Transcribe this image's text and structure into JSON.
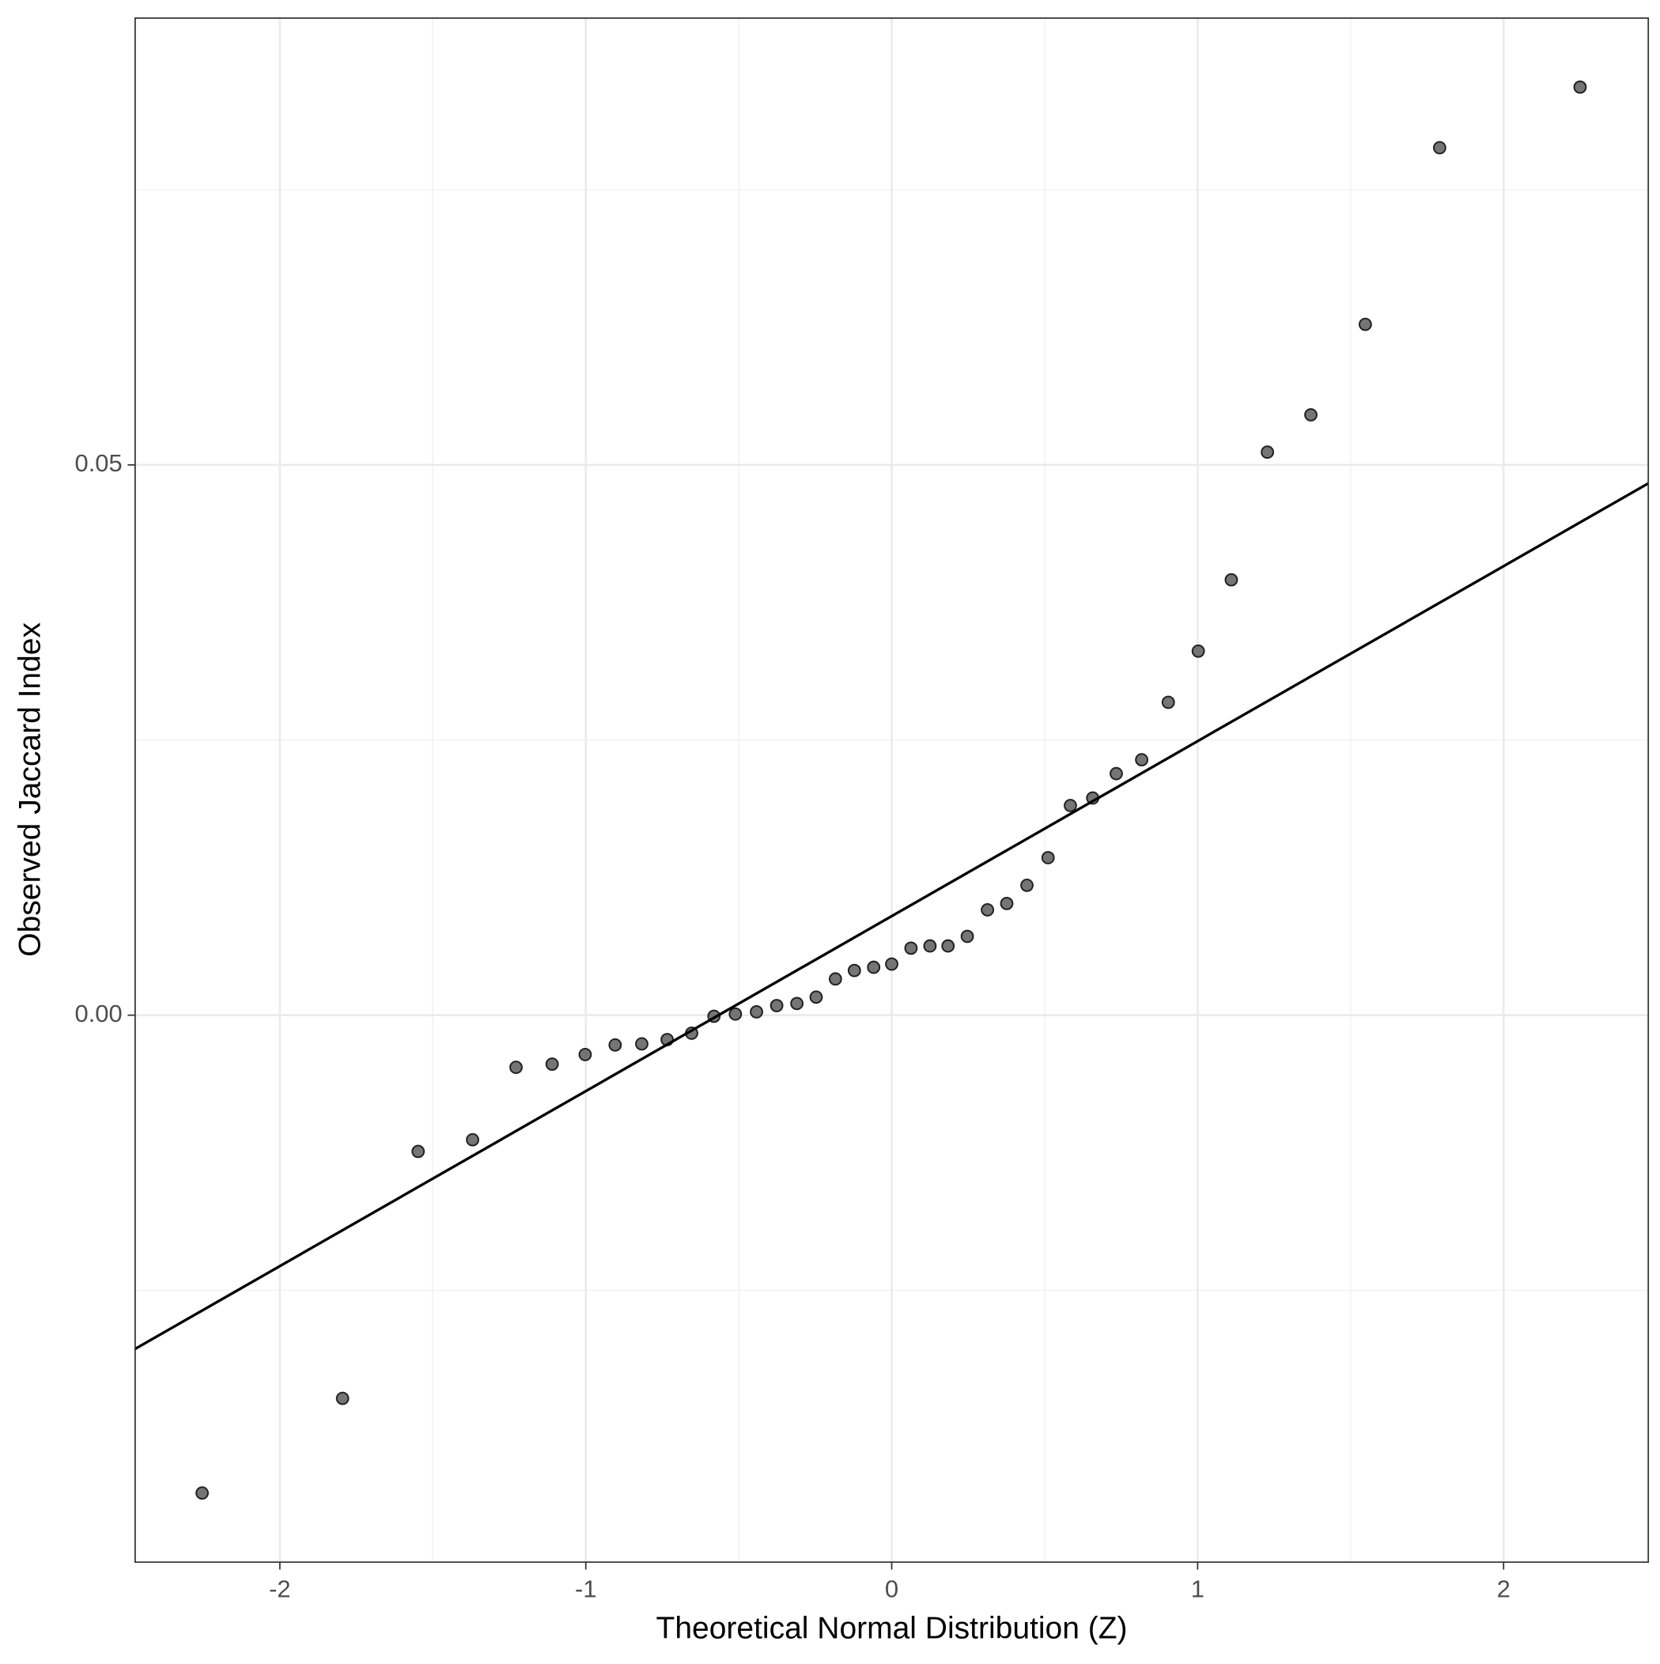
{
  "chart_data": {
    "type": "scatter",
    "xlabel": "Theoretical Normal Distribution (Z)",
    "ylabel": "Observed Jaccard Index",
    "x": [
      -2.254,
      -1.795,
      -1.548,
      -1.37,
      -1.228,
      -1.11,
      -1.002,
      -0.904,
      -0.817,
      -0.734,
      -0.654,
      -0.581,
      -0.511,
      -0.442,
      -0.376,
      -0.31,
      -0.247,
      -0.184,
      -0.122,
      -0.059,
      0,
      0.063,
      0.125,
      0.184,
      0.247,
      0.313,
      0.376,
      0.442,
      0.511,
      0.584,
      0.657,
      0.734,
      0.817,
      0.904,
      1.002,
      1.11,
      1.228,
      1.37,
      1.548,
      1.791,
      2.25
    ],
    "values": [
      -0.04342,
      -0.03482,
      -0.01238,
      -0.01132,
      -0.00474,
      -0.00445,
      -0.00358,
      -0.00271,
      -0.00261,
      -0.00222,
      -0.00164,
      -0.0001,
      0.0001,
      0.0003,
      0.00087,
      0.00106,
      0.00164,
      0.00329,
      0.00406,
      0.00435,
      0.00464,
      0.00609,
      0.00629,
      0.00629,
      0.00716,
      0.00957,
      0.01015,
      0.0118,
      0.01431,
      0.01905,
      0.01973,
      0.02195,
      0.02321,
      0.02843,
      0.03308,
      0.03956,
      0.05116,
      0.05455,
      0.06277,
      0.07882,
      0.08433
    ],
    "color": "#666666",
    "reference_line": {
      "intercept": 0.009,
      "slope": 0.0159,
      "color": "#000000"
    },
    "xlim": [
      -2.473,
      2.473
    ],
    "ylim": [
      -0.0497,
      0.0906
    ],
    "xticks": [
      -2,
      -1,
      0,
      1,
      2
    ],
    "yticks": [
      {
        "value": 0,
        "label": "0.00"
      },
      0.05
    ],
    "x_minor_ticks": [
      -1.5,
      -0.5,
      0.5,
      1.5
    ],
    "y_minor_ticks": [
      -0.025,
      0.025,
      0.075
    ],
    "grid": true
  }
}
